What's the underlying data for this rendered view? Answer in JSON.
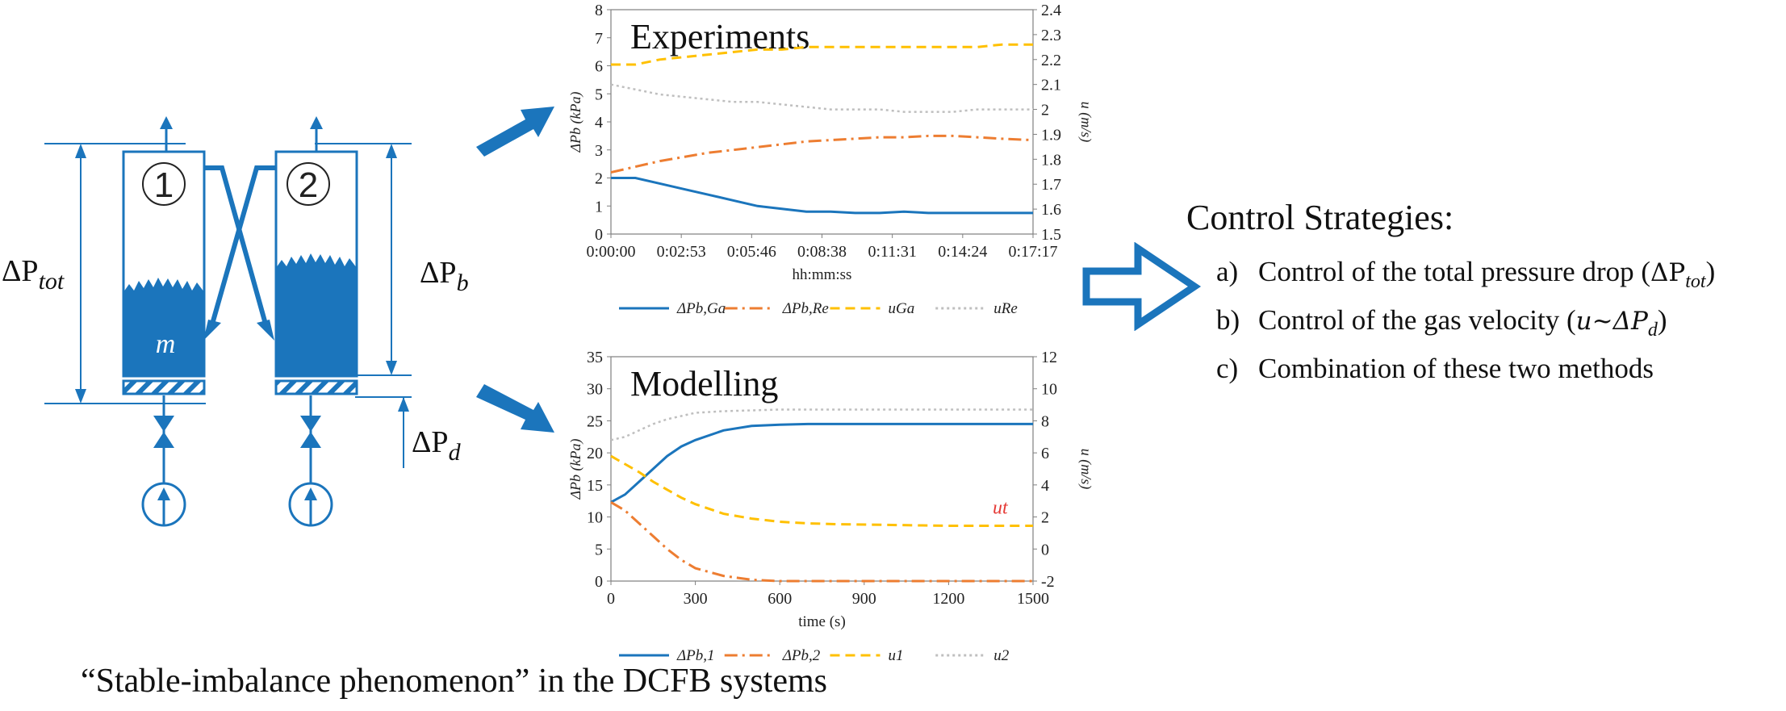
{
  "schematic": {
    "bed1_label": "1",
    "bed2_label": "2",
    "mass_label": "m",
    "dp_tot": "ΔP",
    "dp_tot_sub": "tot",
    "dp_b": "ΔP",
    "dp_b_sub": "b",
    "dp_d": "ΔP",
    "dp_d_sub": "d"
  },
  "colors": {
    "blue": "#1b75bc",
    "orange": "#ed7d31",
    "yellow": "#ffc000",
    "gray": "#bfbfbf",
    "red": "#e53935"
  },
  "chart_data": [
    {
      "type": "line",
      "title": "Experiments",
      "xlabel": "hh:mm:ss",
      "ylabel": "ΔPb (kPa)",
      "y2label": "u (m/s)",
      "x_ticks": [
        "0:00:00",
        "0:02:53",
        "0:05:46",
        "0:08:38",
        "0:11:31",
        "0:14:24",
        "0:17:17"
      ],
      "ylim": [
        0,
        8
      ],
      "y_ticks": [
        0,
        1,
        2,
        3,
        4,
        5,
        6,
        7,
        8
      ],
      "y2lim": [
        1.5,
        2.4
      ],
      "y2_ticks": [
        "1.5",
        "1.6",
        "1.7",
        "1.8",
        "1.9",
        "2",
        "2.1",
        "2.2",
        "2.3",
        "2.4"
      ],
      "grid": false,
      "legend_position": "bottom",
      "series": [
        {
          "name": "ΔPb,Ga",
          "axis": "left",
          "style": "solid",
          "color": "#1b75bc",
          "x": [
            0,
            60,
            120,
            180,
            240,
            300,
            360,
            420,
            480,
            540,
            600,
            660,
            720,
            780,
            840,
            900,
            960,
            1037
          ],
          "y": [
            2.0,
            2.0,
            1.8,
            1.6,
            1.4,
            1.2,
            1.0,
            0.9,
            0.8,
            0.8,
            0.75,
            0.75,
            0.8,
            0.75,
            0.75,
            0.75,
            0.75,
            0.75
          ]
        },
        {
          "name": "ΔPb,Re",
          "axis": "left",
          "style": "dashdot",
          "color": "#ed7d31",
          "x": [
            0,
            60,
            120,
            180,
            240,
            300,
            360,
            420,
            480,
            540,
            600,
            660,
            720,
            780,
            840,
            900,
            960,
            1037
          ],
          "y": [
            2.2,
            2.4,
            2.6,
            2.75,
            2.9,
            3.0,
            3.1,
            3.2,
            3.3,
            3.35,
            3.4,
            3.45,
            3.45,
            3.5,
            3.5,
            3.45,
            3.4,
            3.35
          ]
        },
        {
          "name": "uGa",
          "axis": "right",
          "style": "dashed",
          "color": "#ffc000",
          "x": [
            0,
            60,
            120,
            180,
            240,
            300,
            360,
            420,
            480,
            540,
            600,
            660,
            720,
            780,
            840,
            900,
            960,
            1037
          ],
          "y": [
            2.18,
            2.18,
            2.2,
            2.21,
            2.22,
            2.23,
            2.24,
            2.24,
            2.25,
            2.25,
            2.25,
            2.25,
            2.25,
            2.25,
            2.25,
            2.25,
            2.26,
            2.26
          ]
        },
        {
          "name": "uRe",
          "axis": "right",
          "style": "dotted",
          "color": "#bfbfbf",
          "x": [
            0,
            60,
            120,
            180,
            240,
            300,
            360,
            420,
            480,
            540,
            600,
            660,
            720,
            780,
            840,
            900,
            960,
            1037
          ],
          "y": [
            2.1,
            2.08,
            2.06,
            2.05,
            2.04,
            2.03,
            2.03,
            2.02,
            2.01,
            2.0,
            2.0,
            2.0,
            1.99,
            1.99,
            1.99,
            2.0,
            2.0,
            2.0
          ]
        }
      ]
    },
    {
      "type": "line",
      "title": "Modelling",
      "xlabel": "time (s)",
      "ylabel": "ΔPb (kPa)",
      "y2label": "u (m/s)",
      "xlim": [
        0,
        1500
      ],
      "x_ticks": [
        0,
        300,
        600,
        900,
        1200,
        1500
      ],
      "ylim": [
        0,
        35
      ],
      "y_ticks": [
        0,
        5,
        10,
        15,
        20,
        25,
        30,
        35
      ],
      "y2lim": [
        -2,
        12
      ],
      "y2_ticks": [
        -2,
        0,
        2,
        4,
        6,
        8,
        10,
        12
      ],
      "annotation": "ut",
      "grid": false,
      "legend_position": "bottom",
      "series": [
        {
          "name": "ΔPb,1",
          "axis": "left",
          "style": "solid",
          "color": "#1b75bc",
          "x": [
            0,
            50,
            100,
            150,
            200,
            250,
            300,
            400,
            500,
            600,
            700,
            800,
            1000,
            1200,
            1500
          ],
          "y": [
            12.3,
            13.5,
            15.5,
            17.5,
            19.5,
            21.0,
            22.0,
            23.5,
            24.2,
            24.4,
            24.5,
            24.5,
            24.5,
            24.5,
            24.5
          ]
        },
        {
          "name": "ΔPb,2",
          "axis": "left",
          "style": "dashdot",
          "color": "#ed7d31",
          "x": [
            0,
            50,
            100,
            150,
            200,
            250,
            300,
            400,
            500,
            600,
            700,
            800,
            1000,
            1200,
            1500
          ],
          "y": [
            12.3,
            11.0,
            9.0,
            7.0,
            5.0,
            3.3,
            2.0,
            0.8,
            0.2,
            0,
            0,
            0,
            0,
            0,
            0
          ]
        },
        {
          "name": "u1",
          "axis": "right",
          "style": "dashed",
          "color": "#ffc000",
          "x": [
            0,
            50,
            100,
            150,
            200,
            250,
            300,
            400,
            500,
            600,
            700,
            800,
            1000,
            1200,
            1500
          ],
          "y": [
            5.8,
            5.3,
            4.8,
            4.2,
            3.7,
            3.2,
            2.8,
            2.2,
            1.9,
            1.7,
            1.6,
            1.55,
            1.5,
            1.45,
            1.45
          ]
        },
        {
          "name": "u2",
          "axis": "right",
          "style": "dotted",
          "color": "#bfbfbf",
          "x": [
            0,
            50,
            100,
            150,
            200,
            250,
            300,
            400,
            500,
            600,
            700,
            800,
            1000,
            1200,
            1500
          ],
          "y": [
            6.8,
            7.0,
            7.4,
            7.8,
            8.1,
            8.3,
            8.5,
            8.6,
            8.65,
            8.7,
            8.7,
            8.7,
            8.7,
            8.7,
            8.7
          ]
        }
      ]
    }
  ],
  "strategies": {
    "heading": "Control Strategies:",
    "items": [
      {
        "label": "a)",
        "text": "Control of the total pressure drop (",
        "math": "ΔP",
        "sub": "tot",
        "tail": ")"
      },
      {
        "label": "b)",
        "text": "Control of the gas velocity (",
        "math": "u~ΔP",
        "sub": "d",
        "tail": ")"
      },
      {
        "label": "c)",
        "text": "Combination of these two methods",
        "math": "",
        "sub": "",
        "tail": ""
      }
    ]
  },
  "caption": "“Stable-imbalance phenomenon” in the DCFB systems"
}
